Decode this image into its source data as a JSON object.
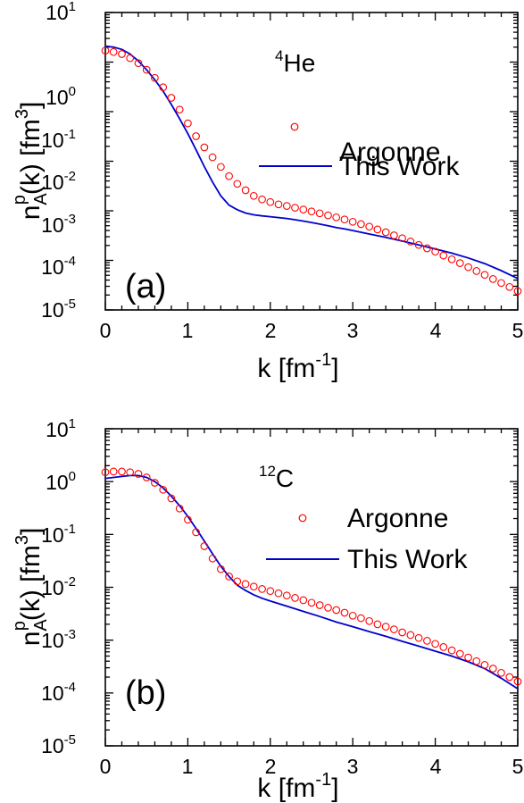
{
  "chart_data": [
    {
      "type": "scatter",
      "panel_label": "(a)",
      "nucleus": {
        "mass_number": "4",
        "symbol": "He"
      },
      "xlabel": {
        "main": "k [fm",
        "sup": "-1",
        "end": "]"
      },
      "ylabel": {
        "n": "n",
        "sub": "A",
        "sup": "p",
        "mid": "(k) [fm",
        "sup2": "3",
        "end": "]"
      },
      "xlim": [
        0,
        5
      ],
      "ylim": [
        1e-05,
        10
      ],
      "yscale": "log",
      "x_ticks": [
        "0",
        "1",
        "2",
        "3",
        "4",
        "5"
      ],
      "y_ticks": [
        {
          "base": "10",
          "exp": "-5"
        },
        {
          "base": "10",
          "exp": "-4"
        },
        {
          "base": "10",
          "exp": "-3"
        },
        {
          "base": "10",
          "exp": "-2"
        },
        {
          "base": "10",
          "exp": "-1"
        },
        {
          "base": "10",
          "exp": "0"
        },
        {
          "base": "10",
          "exp": "1"
        }
      ],
      "legend": {
        "position": "center-right",
        "entries": [
          "Argonne",
          "This Work"
        ]
      },
      "series": [
        {
          "name": "Argonne",
          "style": "open-circle",
          "color": "#ff0000",
          "x": [
            0.0,
            0.1,
            0.2,
            0.3,
            0.4,
            0.5,
            0.6,
            0.7,
            0.8,
            0.9,
            1.0,
            1.1,
            1.2,
            1.3,
            1.4,
            1.5,
            1.6,
            1.7,
            1.8,
            1.9,
            2.0,
            2.1,
            2.2,
            2.3,
            2.4,
            2.5,
            2.6,
            2.7,
            2.8,
            2.9,
            3.0,
            3.1,
            3.2,
            3.3,
            3.4,
            3.5,
            3.6,
            3.7,
            3.8,
            3.9,
            4.0,
            4.1,
            4.2,
            4.3,
            4.4,
            4.5,
            4.6,
            4.7,
            4.8,
            4.9,
            5.0
          ],
          "y": [
            1.7,
            1.6,
            1.45,
            1.2,
            0.95,
            0.7,
            0.48,
            0.31,
            0.19,
            0.11,
            0.058,
            0.032,
            0.019,
            0.012,
            0.0077,
            0.005,
            0.0035,
            0.0026,
            0.002,
            0.0017,
            0.0015,
            0.00135,
            0.00125,
            0.00115,
            0.00106,
            0.00097,
            0.00089,
            0.00081,
            0.00074,
            0.00067,
            0.0006,
            0.00054,
            0.00048,
            0.00042,
            0.00037,
            0.00032,
            0.00028,
            0.00024,
            0.000205,
            0.000175,
            0.00015,
            0.000125,
            0.000105,
            8.8e-05,
            7.3e-05,
            6.1e-05,
            5.1e-05,
            4.2e-05,
            3.5e-05,
            2.9e-05,
            2.4e-05
          ]
        },
        {
          "name": "This Work",
          "style": "line",
          "color": "#0000cc",
          "x": [
            0.0,
            0.1,
            0.2,
            0.3,
            0.4,
            0.5,
            0.6,
            0.7,
            0.8,
            0.9,
            1.0,
            1.1,
            1.2,
            1.3,
            1.4,
            1.5,
            1.6,
            1.7,
            1.8,
            1.9,
            2.0,
            2.1,
            2.2,
            2.3,
            2.4,
            2.5,
            2.6,
            2.7,
            2.8,
            2.9,
            3.0,
            3.2,
            3.4,
            3.6,
            3.8,
            4.0,
            4.2,
            4.4,
            4.6,
            4.8,
            5.0
          ],
          "y": [
            2.1,
            2.0,
            1.8,
            1.45,
            1.05,
            0.7,
            0.44,
            0.26,
            0.14,
            0.072,
            0.036,
            0.017,
            0.0078,
            0.0038,
            0.002,
            0.0013,
            0.00105,
            0.0009,
            0.00083,
            0.00079,
            0.00076,
            0.00073,
            0.0007,
            0.00066,
            0.00062,
            0.00058,
            0.00054,
            0.0005,
            0.00046,
            0.00043,
            0.0004,
            0.00034,
            0.00029,
            0.000245,
            0.000205,
            0.00017,
            0.00014,
            0.000112,
            8.6e-05,
            6.2e-05,
            4.3e-05
          ]
        }
      ]
    },
    {
      "type": "scatter",
      "panel_label": "(b)",
      "nucleus": {
        "mass_number": "12",
        "symbol": "C"
      },
      "xlabel": {
        "main": "k [fm",
        "sup": "-1",
        "end": "]"
      },
      "ylabel": {
        "n": "n",
        "sub": "A",
        "sup": "p",
        "mid": "(k) [fm",
        "sup2": "3",
        "end": "]"
      },
      "xlim": [
        0,
        5
      ],
      "ylim": [
        1e-05,
        10
      ],
      "yscale": "log",
      "x_ticks": [
        "0",
        "1",
        "2",
        "3",
        "4",
        "5"
      ],
      "y_ticks": [
        {
          "base": "10",
          "exp": "-5"
        },
        {
          "base": "10",
          "exp": "-4"
        },
        {
          "base": "10",
          "exp": "-3"
        },
        {
          "base": "10",
          "exp": "-2"
        },
        {
          "base": "10",
          "exp": "-1"
        },
        {
          "base": "10",
          "exp": "0"
        },
        {
          "base": "10",
          "exp": "1"
        }
      ],
      "legend": {
        "position": "center-right",
        "entries": [
          "Argonne",
          "This Work"
        ]
      },
      "series": [
        {
          "name": "Argonne",
          "style": "open-circle",
          "color": "#ff0000",
          "x": [
            0.0,
            0.1,
            0.2,
            0.3,
            0.4,
            0.5,
            0.6,
            0.7,
            0.8,
            0.9,
            1.0,
            1.1,
            1.2,
            1.3,
            1.4,
            1.5,
            1.6,
            1.7,
            1.8,
            1.9,
            2.0,
            2.1,
            2.2,
            2.3,
            2.4,
            2.5,
            2.6,
            2.7,
            2.8,
            2.9,
            3.0,
            3.1,
            3.2,
            3.3,
            3.4,
            3.5,
            3.6,
            3.7,
            3.8,
            3.9,
            4.0,
            4.1,
            4.2,
            4.3,
            4.4,
            4.5,
            4.6,
            4.7,
            4.8,
            4.9,
            5.0
          ],
          "y": [
            1.5,
            1.55,
            1.55,
            1.5,
            1.4,
            1.2,
            0.95,
            0.7,
            0.48,
            0.31,
            0.19,
            0.11,
            0.06,
            0.035,
            0.022,
            0.016,
            0.013,
            0.0115,
            0.0103,
            0.0093,
            0.0085,
            0.0077,
            0.007,
            0.0063,
            0.0057,
            0.0051,
            0.0046,
            0.0041,
            0.0037,
            0.0033,
            0.0029,
            0.0026,
            0.0023,
            0.002,
            0.0018,
            0.0016,
            0.0014,
            0.00125,
            0.0011,
            0.00097,
            0.00085,
            0.00074,
            0.00064,
            0.00055,
            0.00047,
            0.0004,
            0.00034,
            0.00029,
            0.00024,
            0.0002,
            0.000165
          ]
        },
        {
          "name": "This Work",
          "style": "line",
          "color": "#0000cc",
          "x": [
            0.0,
            0.1,
            0.2,
            0.3,
            0.4,
            0.5,
            0.6,
            0.7,
            0.8,
            0.9,
            1.0,
            1.1,
            1.2,
            1.3,
            1.4,
            1.5,
            1.6,
            1.7,
            1.8,
            1.9,
            2.0,
            2.2,
            2.4,
            2.6,
            2.8,
            3.0,
            3.2,
            3.4,
            3.6,
            3.8,
            4.0,
            4.2,
            4.4,
            4.6,
            4.8,
            5.0
          ],
          "y": [
            1.15,
            1.2,
            1.25,
            1.3,
            1.3,
            1.2,
            1.0,
            0.76,
            0.53,
            0.35,
            0.22,
            0.13,
            0.075,
            0.043,
            0.025,
            0.016,
            0.011,
            0.0087,
            0.0072,
            0.0062,
            0.0055,
            0.0044,
            0.0035,
            0.0028,
            0.0022,
            0.0018,
            0.00145,
            0.00118,
            0.00095,
            0.00077,
            0.00062,
            0.0005,
            0.00039,
            0.00029,
            0.00019,
            0.00012
          ]
        }
      ]
    }
  ]
}
